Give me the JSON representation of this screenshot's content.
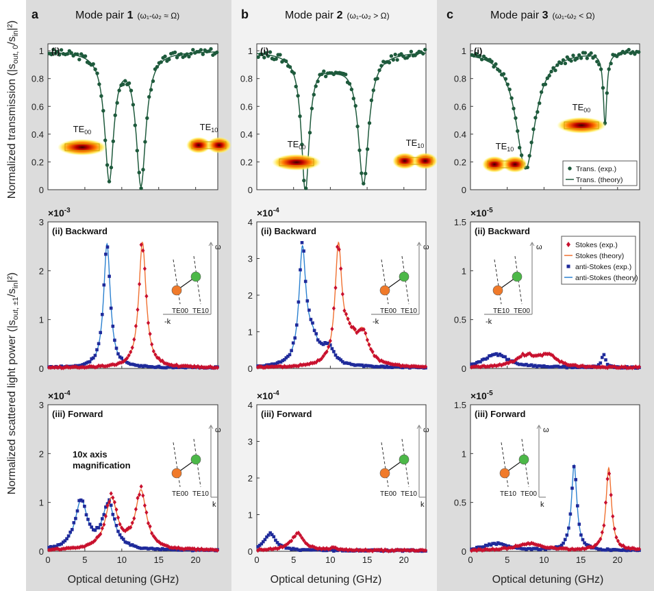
{
  "figure": {
    "ylabel_transmission": "Normalized transmission (|s",
    "ylabel_transmission_sub": "out, 0",
    "ylabel_transmission_mid": "/s",
    "ylabel_transmission_sub2": "in",
    "ylabel_transmission_end": "|²)",
    "ylabel_scatter": "Normalized scattered light power (|s",
    "ylabel_scatter_sub": "out, ±1",
    "ylabel_scatter_mid": "/s",
    "ylabel_scatter_sub2": "in",
    "ylabel_scatter_end": "|²)",
    "xlabel": "Optical detuning (GHz)",
    "colors": {
      "trans": "#1e5a3c",
      "stokes": "#c8102e",
      "astokes": "#1f2a9a",
      "stokes_fit": "#f07030",
      "astokes_fit": "#2a80d0",
      "panel_bg_a": "#dcdcdc",
      "panel_bg_b": "#f2f2f2"
    }
  },
  "columns": [
    {
      "letter": "a",
      "title_pre": "Mode pair ",
      "title_num": "1",
      "title_cond": "(ω₁-ω₂ ≈ Ω)",
      "te_left": "TE00",
      "te_right": "TE10"
    },
    {
      "letter": "b",
      "title_pre": "Mode pair ",
      "title_num": "2",
      "title_cond": "(ω₁-ω₂ > Ω)",
      "te_left": "TE00",
      "te_right": "TE10"
    },
    {
      "letter": "c",
      "title_pre": "Mode pair ",
      "title_num": "3",
      "title_cond": "(ω₁-ω₂ < Ω)",
      "te_left": "TE10",
      "te_right": "TE00"
    }
  ],
  "panel_labels": {
    "trans": "(i)",
    "backward": "(ii) Backward",
    "forward": "(iii) Forward"
  },
  "annotation": "10x axis magnification",
  "legend_trans": {
    "exp": "Trans. (exp.)",
    "theory": "Trans. (theory)"
  },
  "legend_scatter": {
    "stokes_exp": "Stokes (exp.)",
    "stokes_theory": "Stokes (theory)",
    "astokes_exp": "anti-Stokes (exp.)",
    "astokes_theory": "anti-Stokes (theory)"
  },
  "inset_labels": {
    "omega": "ω",
    "minus_k": "-k",
    "k": "k",
    "te00": "TE00",
    "te10": "TE10"
  },
  "chart_data": [
    {
      "id": "a-i",
      "type": "line",
      "title": "Mode pair 1 (ω₁-ω₂ ≈ Ω) (i)",
      "xlabel": "",
      "ylabel": "Normalized transmission",
      "xlim": [
        0,
        23
      ],
      "ylim": [
        0,
        1.05
      ],
      "xticks": [
        0,
        5,
        10,
        15,
        20
      ],
      "yticks": [
        0,
        0.2,
        0.4,
        0.6,
        0.8,
        1
      ],
      "ytick_labels": [
        "0",
        "0.2",
        "0.4",
        "0.6",
        "0.8",
        "1"
      ],
      "series": [
        {
          "name": "Trans. (theory)",
          "dips": [
            {
              "x0": 8.3,
              "depth": 0.91,
              "gamma": 0.75
            },
            {
              "x0": 12.6,
              "depth": 0.95,
              "gamma": 0.8
            }
          ]
        }
      ]
    },
    {
      "id": "b-i",
      "type": "line",
      "title": "Mode pair 2 (ω₁-ω₂ > Ω) (i)",
      "xlabel": "",
      "ylabel": "",
      "xlim": [
        0,
        23
      ],
      "ylim": [
        0,
        1.05
      ],
      "xticks": [
        0,
        5,
        10,
        15,
        20
      ],
      "yticks": [
        0,
        0.2,
        0.4,
        0.6,
        0.8,
        1
      ],
      "ytick_labels": [
        "0",
        "0.2",
        "0.4",
        "0.6",
        "0.8",
        "1"
      ],
      "series": [
        {
          "name": "Trans. (theory)",
          "dips": [
            {
              "x0": 6.6,
              "depth": 0.97,
              "gamma": 0.65
            },
            {
              "x0": 14.5,
              "depth": 0.92,
              "gamma": 0.85
            }
          ]
        }
      ]
    },
    {
      "id": "c-i",
      "type": "line",
      "title": "Mode pair 3 (ω₁-ω₂ < Ω) (i)",
      "xlabel": "",
      "ylabel": "",
      "xlim": [
        0,
        23
      ],
      "ylim": [
        0,
        1.05
      ],
      "xticks": [
        0,
        5,
        10,
        15,
        20
      ],
      "yticks": [
        0,
        0.2,
        0.4,
        0.6,
        0.8,
        1
      ],
      "ytick_labels": [
        "0",
        "0.2",
        "0.4",
        "0.6",
        "0.8",
        "1"
      ],
      "series": [
        {
          "name": "Trans. (theory)",
          "dips": [
            {
              "x0": 7.5,
              "depth": 0.85,
              "gamma": 1.6
            },
            {
              "x0": 18.3,
              "depth": 0.52,
              "gamma": 0.28
            }
          ]
        }
      ]
    },
    {
      "id": "a-ii",
      "type": "line",
      "title": "(ii) Backward",
      "multiplier": "×10",
      "multiplier_exp": "-3",
      "xlim": [
        0,
        23
      ],
      "ylim": [
        0,
        3
      ],
      "xticks": [
        0,
        5,
        10,
        15,
        20
      ],
      "yticks": [
        0,
        1,
        2,
        3
      ],
      "ytick_labels": [
        "0",
        "1",
        "2",
        "3"
      ],
      "series": [
        {
          "name": "anti-Stokes (theory)",
          "peaks": [
            {
              "x0": 8.0,
              "amp": 2.55,
              "gamma": 0.55
            }
          ]
        },
        {
          "name": "Stokes (theory)",
          "peaks": [
            {
              "x0": 12.8,
              "amp": 2.58,
              "gamma": 0.6
            }
          ]
        }
      ]
    },
    {
      "id": "b-ii",
      "type": "line",
      "title": "(ii) Backward",
      "multiplier": "×10",
      "multiplier_exp": "-4",
      "xlim": [
        0,
        23
      ],
      "ylim": [
        0,
        4
      ],
      "xticks": [
        0,
        5,
        10,
        15,
        20
      ],
      "yticks": [
        0,
        1,
        2,
        3,
        4
      ],
      "ytick_labels": [
        "0",
        "1",
        "2",
        "3",
        "4"
      ],
      "series": [
        {
          "name": "anti-Stokes (theory)",
          "peaks": [
            {
              "x0": 6.2,
              "amp": 3.0,
              "gamma": 0.55
            },
            {
              "x0": 7.5,
              "amp": 0.7,
              "gamma": 1.2
            },
            {
              "x0": 9.8,
              "amp": 0.45,
              "gamma": 0.9
            }
          ]
        },
        {
          "name": "Stokes (theory)",
          "peaks": [
            {
              "x0": 11.1,
              "amp": 3.1,
              "gamma": 0.55
            },
            {
              "x0": 12.5,
              "amp": 0.7,
              "gamma": 1.1
            },
            {
              "x0": 14.4,
              "amp": 0.85,
              "gamma": 1.0
            }
          ]
        }
      ]
    },
    {
      "id": "c-ii",
      "type": "line",
      "title": "(ii) Backward",
      "multiplier": "×10",
      "multiplier_exp": "-5",
      "xlim": [
        0,
        23
      ],
      "ylim": [
        0,
        1.5
      ],
      "xticks": [
        0,
        5,
        10,
        15,
        20
      ],
      "yticks": [
        0,
        0.5,
        1,
        1.5
      ],
      "ytick_labels": [
        "0",
        "0.5",
        "1",
        "1.5"
      ],
      "series": [
        {
          "name": "anti-Stokes (exp.)",
          "peaks": [
            {
              "x0": 3.5,
              "amp": 0.14,
              "gamma": 2.0
            },
            {
              "x0": 18.1,
              "amp": 0.14,
              "gamma": 0.3
            }
          ]
        },
        {
          "name": "Stokes (exp.)",
          "peaks": [
            {
              "x0": 7.5,
              "amp": 0.12,
              "gamma": 1.6
            },
            {
              "x0": 10.5,
              "amp": 0.12,
              "gamma": 1.4
            }
          ]
        }
      ]
    },
    {
      "id": "a-iii",
      "type": "line",
      "title": "(iii) Forward",
      "multiplier": "×10",
      "multiplier_exp": "-4",
      "xlim": [
        0,
        23
      ],
      "ylim": [
        0,
        3
      ],
      "xticks": [
        0,
        5,
        10,
        15,
        20
      ],
      "yticks": [
        0,
        1,
        2,
        3
      ],
      "ytick_labels": [
        "0",
        "1",
        "2",
        "3"
      ],
      "series": [
        {
          "name": "anti-Stokes (theory)",
          "peaks": [
            {
              "x0": 4.5,
              "amp": 1.0,
              "gamma": 1.0
            },
            {
              "x0": 8.2,
              "amp": 0.95,
              "gamma": 1.0
            }
          ]
        },
        {
          "name": "Stokes (theory)",
          "peaks": [
            {
              "x0": 8.6,
              "amp": 1.05,
              "gamma": 1.0
            },
            {
              "x0": 12.6,
              "amp": 1.2,
              "gamma": 0.9
            }
          ]
        }
      ]
    },
    {
      "id": "b-iii",
      "type": "line",
      "title": "(iii) Forward",
      "multiplier": "×10",
      "multiplier_exp": "-4",
      "xlim": [
        0,
        23
      ],
      "ylim": [
        0,
        4
      ],
      "xticks": [
        0,
        5,
        10,
        15,
        20
      ],
      "yticks": [
        0,
        1,
        2,
        3,
        4
      ],
      "ytick_labels": [
        "0",
        "1",
        "2",
        "3",
        "4"
      ],
      "series": [
        {
          "name": "anti-Stokes (exp.)",
          "peaks": [
            {
              "x0": 1.8,
              "amp": 0.45,
              "gamma": 1.0
            }
          ]
        },
        {
          "name": "Stokes (exp.)",
          "peaks": [
            {
              "x0": 5.5,
              "amp": 0.45,
              "gamma": 1.1
            },
            {
              "x0": 10.5,
              "amp": 0.06,
              "gamma": 0.5
            }
          ]
        }
      ]
    },
    {
      "id": "c-iii",
      "type": "line",
      "title": "(iii) Forward",
      "multiplier": "×10",
      "multiplier_exp": "-5",
      "xlim": [
        0,
        23
      ],
      "ylim": [
        0,
        1.5
      ],
      "xticks": [
        0,
        5,
        10,
        15,
        20
      ],
      "yticks": [
        0,
        0.5,
        1,
        1.5
      ],
      "ytick_labels": [
        "0",
        "0.5",
        "1",
        "1.5"
      ],
      "series": [
        {
          "name": "anti-Stokes (theory)",
          "peaks": [
            {
              "x0": 14.1,
              "amp": 0.88,
              "gamma": 0.45
            },
            {
              "x0": 3.5,
              "amp": 0.07,
              "gamma": 2.0
            }
          ]
        },
        {
          "name": "Stokes (theory)",
          "peaks": [
            {
              "x0": 18.8,
              "amp": 0.85,
              "gamma": 0.45
            },
            {
              "x0": 8.0,
              "amp": 0.07,
              "gamma": 2.2
            }
          ]
        }
      ]
    }
  ]
}
